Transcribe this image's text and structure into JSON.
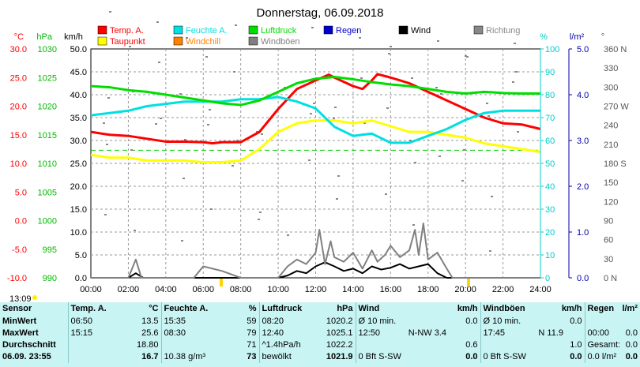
{
  "chart_data": {
    "type": "line",
    "title": "Donnerstag, 06.09.2018",
    "x_ticks": [
      "00:00",
      "02:00",
      "04:00",
      "06:00",
      "08:00",
      "10:00",
      "12:00",
      "14:00",
      "16:00",
      "18:00",
      "20:00",
      "22:00",
      "24:00"
    ],
    "xlim": [
      0,
      24
    ],
    "axes": {
      "temp": {
        "label": "°C",
        "ylim": [
          -10,
          30
        ],
        "ticks": [
          "30.0",
          "25.0",
          "20.0",
          "15.0",
          "10.0",
          "5.0",
          "0.0",
          "-5.0",
          "-10.0"
        ],
        "color": "#ff0000"
      },
      "pressure": {
        "label": "hPa",
        "ylim": [
          990,
          1030
        ],
        "ticks": [
          "1030",
          "1025",
          "1020",
          "1015",
          "1010",
          "1005",
          "1000",
          "995",
          "990"
        ],
        "color": "#00bb00"
      },
      "wind": {
        "label": "km/h",
        "ylim": [
          0,
          50
        ],
        "ticks": [
          "50.0",
          "45.0",
          "40.0",
          "35.0",
          "30.0",
          "25.0",
          "20.0",
          "15.0",
          "10.0",
          "5.0",
          "0.0"
        ],
        "color": "#000000"
      },
      "humidity": {
        "label": "%",
        "ylim": [
          0,
          100
        ],
        "ticks": [
          "100",
          "90",
          "80",
          "70",
          "60",
          "50",
          "40",
          "30",
          "20",
          "10",
          "0"
        ],
        "color": "#00cccc"
      },
      "rain": {
        "label": "l/m²",
        "ylim": [
          0,
          5
        ],
        "ticks": [
          "5.0",
          "4.0",
          "3.0",
          "2.0",
          "1.0",
          "0.0"
        ],
        "color": "#0000aa"
      },
      "direction": {
        "label": "°",
        "ylim": [
          0,
          360
        ],
        "ticks": [
          "360 N",
          "330",
          "300",
          "270 W",
          "240",
          "210",
          "180 S",
          "150",
          "120",
          "90",
          "60",
          "30",
          "0 N"
        ],
        "color": "#555555"
      }
    },
    "legend": [
      {
        "name": "Temp. A.",
        "color": "#ff0000"
      },
      {
        "name": "Feuchte A.",
        "color": "#00e0e0"
      },
      {
        "name": "Luftdruck",
        "color": "#00dd00"
      },
      {
        "name": "Regen",
        "color": "#0000cc"
      },
      {
        "name": "Wind",
        "color": "#000000"
      },
      {
        "name": "Richtung",
        "color": "#888888"
      },
      {
        "name": "Taupunkt",
        "color": "#ffff00"
      },
      {
        "name": "Windchill",
        "color": "#ff8000"
      },
      {
        "name": "Windböen",
        "color": "#808080"
      }
    ],
    "series": [
      {
        "name": "Temp. A.",
        "axis": "temp",
        "color": "#ff0000",
        "x": [
          0,
          1,
          2,
          3,
          4,
          5,
          6,
          6.5,
          7,
          8,
          9,
          10,
          11,
          12,
          12.7,
          13,
          14,
          14.5,
          15,
          15.3,
          16,
          17,
          18,
          19,
          20,
          21,
          22,
          23,
          24
        ],
        "y": [
          15.5,
          15.0,
          14.8,
          14.3,
          13.8,
          13.8,
          13.7,
          13.5,
          13.7,
          13.7,
          15.5,
          19.5,
          23.0,
          24.5,
          25.5,
          25.0,
          23.5,
          23.0,
          24.5,
          25.6,
          25.0,
          24.0,
          22.5,
          21.0,
          19.5,
          18.0,
          17.0,
          16.8,
          16.0
        ]
      },
      {
        "name": "Taupunkt",
        "axis": "temp",
        "color": "#ffff00",
        "x": [
          0,
          1,
          2,
          3,
          4,
          5,
          6,
          7,
          8,
          9,
          10,
          11,
          12,
          13,
          14,
          15,
          16,
          17,
          18,
          19,
          20,
          21,
          22,
          23,
          24
        ],
        "y": [
          11.5,
          11.0,
          11.0,
          10.5,
          10.5,
          10.5,
          10.2,
          10.2,
          10.5,
          12.5,
          15.5,
          17.0,
          17.5,
          17.5,
          17.0,
          17.5,
          16.5,
          15.5,
          15.5,
          15.0,
          14.5,
          13.5,
          13.0,
          12.5,
          12.0
        ]
      },
      {
        "name": "Feuchte A.",
        "axis": "humidity",
        "color": "#00e0e0",
        "x": [
          0,
          1,
          2,
          3,
          4,
          5,
          6,
          7,
          8,
          9,
          10,
          11,
          12,
          13,
          14,
          15,
          16,
          17,
          18,
          19,
          20,
          21,
          22,
          23,
          24
        ],
        "y": [
          71,
          72,
          73,
          75,
          76,
          77,
          77,
          77,
          78,
          78,
          79,
          77,
          74,
          66,
          62,
          63,
          59,
          59,
          62,
          65,
          69,
          72,
          73,
          73,
          73
        ]
      },
      {
        "name": "Luftdruck",
        "axis": "pressure",
        "color": "#00dd00",
        "x": [
          0,
          1,
          2,
          3,
          4,
          5,
          6,
          7,
          8,
          9,
          10,
          11,
          12,
          13,
          14,
          15,
          16,
          17,
          18,
          19,
          20,
          21,
          22,
          23,
          24
        ],
        "y": [
          1023.5,
          1023.3,
          1022.8,
          1022.5,
          1022.0,
          1021.5,
          1021.0,
          1020.5,
          1020.2,
          1021.0,
          1022.5,
          1024.0,
          1024.8,
          1025.1,
          1024.7,
          1024.2,
          1023.8,
          1023.5,
          1023.0,
          1022.5,
          1022.2,
          1022.5,
          1022.3,
          1022.2,
          1022.2
        ]
      },
      {
        "name": "Wind",
        "axis": "wind",
        "color": "#000000",
        "x": [
          0,
          2,
          2.4,
          2.8,
          3,
          4,
          5,
          6,
          7,
          8,
          9,
          10,
          10.5,
          11,
          11.5,
          12,
          12.5,
          13,
          13.5,
          14,
          14.5,
          15,
          15.5,
          16,
          16.5,
          17,
          17.5,
          18,
          18.5,
          19,
          20,
          22,
          24
        ],
        "y": [
          0,
          0,
          1,
          0,
          0,
          0,
          0,
          0,
          0,
          0,
          0,
          0,
          0.5,
          1.5,
          1.0,
          2.5,
          3.4,
          2.5,
          1.5,
          2.0,
          1.0,
          2.5,
          1.8,
          2.2,
          3.0,
          2.0,
          2.5,
          3.0,
          1.0,
          0,
          0,
          0,
          0
        ]
      },
      {
        "name": "Windböen",
        "axis": "wind",
        "color": "#808080",
        "x": [
          0,
          2,
          2.4,
          2.7,
          3,
          4,
          5,
          5.5,
          6,
          7,
          8,
          9,
          10,
          10.5,
          11,
          11.5,
          12,
          12.2,
          12.5,
          12.8,
          13,
          13.5,
          14,
          14.5,
          15,
          15.3,
          15.7,
          16,
          16.5,
          17,
          17.3,
          17.5,
          17.75,
          18,
          18.5,
          19,
          19.3,
          20,
          22,
          24
        ],
        "y": [
          0,
          0,
          4,
          0,
          0,
          0,
          0,
          0,
          2.5,
          1.5,
          0,
          0,
          0,
          2.5,
          4.0,
          3.0,
          5.5,
          10.5,
          3.0,
          8.0,
          4.5,
          3.5,
          5.5,
          2.0,
          6.0,
          3.5,
          5.0,
          7.0,
          4.5,
          6.0,
          10.5,
          5.0,
          11.9,
          4.0,
          5.5,
          2.0,
          0,
          0,
          0,
          0
        ]
      }
    ],
    "reference_lines": [
      {
        "axis": "temp",
        "value": 12.3,
        "color": "#00cc00",
        "style": "dashed"
      }
    ]
  },
  "time_label": "13:09",
  "table": {
    "headers": [
      "Sensor",
      "Temp. A.",
      "°C",
      "Feuchte A.",
      "%",
      "Luftdruck",
      "hPa",
      "Wind",
      "km/h",
      "Windböen",
      "km/h",
      "Regen",
      "l/m²"
    ],
    "rows": [
      [
        "MinWert",
        "06:50",
        "13.5",
        "15:35",
        "59",
        "08:20",
        "1020.2",
        "Ø 10 min.",
        "",
        "0.0",
        "Ø 10 min.",
        "",
        "0.0",
        "",
        ""
      ],
      [
        "MaxWert",
        "15:15",
        "25.6",
        "08:30",
        "79",
        "12:40",
        "1025.1",
        "12:50",
        "N-NW 3.4",
        "",
        "17:45",
        "N 11.9",
        "",
        "00:00",
        "0.0"
      ],
      [
        "Durchschnitt",
        "",
        "18.80",
        "",
        "71",
        "^1.4hPa/h",
        "1022.2",
        "",
        "",
        "0.6",
        "",
        "",
        "1.0",
        "Gesamt:",
        "0.0"
      ],
      [
        "06.09. 23:55",
        "",
        "16.7",
        "10.38 g/m³",
        "73",
        "bewölkt",
        "1021.9",
        "0 Bft S-SW",
        "",
        "0.0",
        "0 Bft S-SW",
        "",
        "0.0",
        "0.0 l/m²",
        "0.0"
      ]
    ]
  }
}
